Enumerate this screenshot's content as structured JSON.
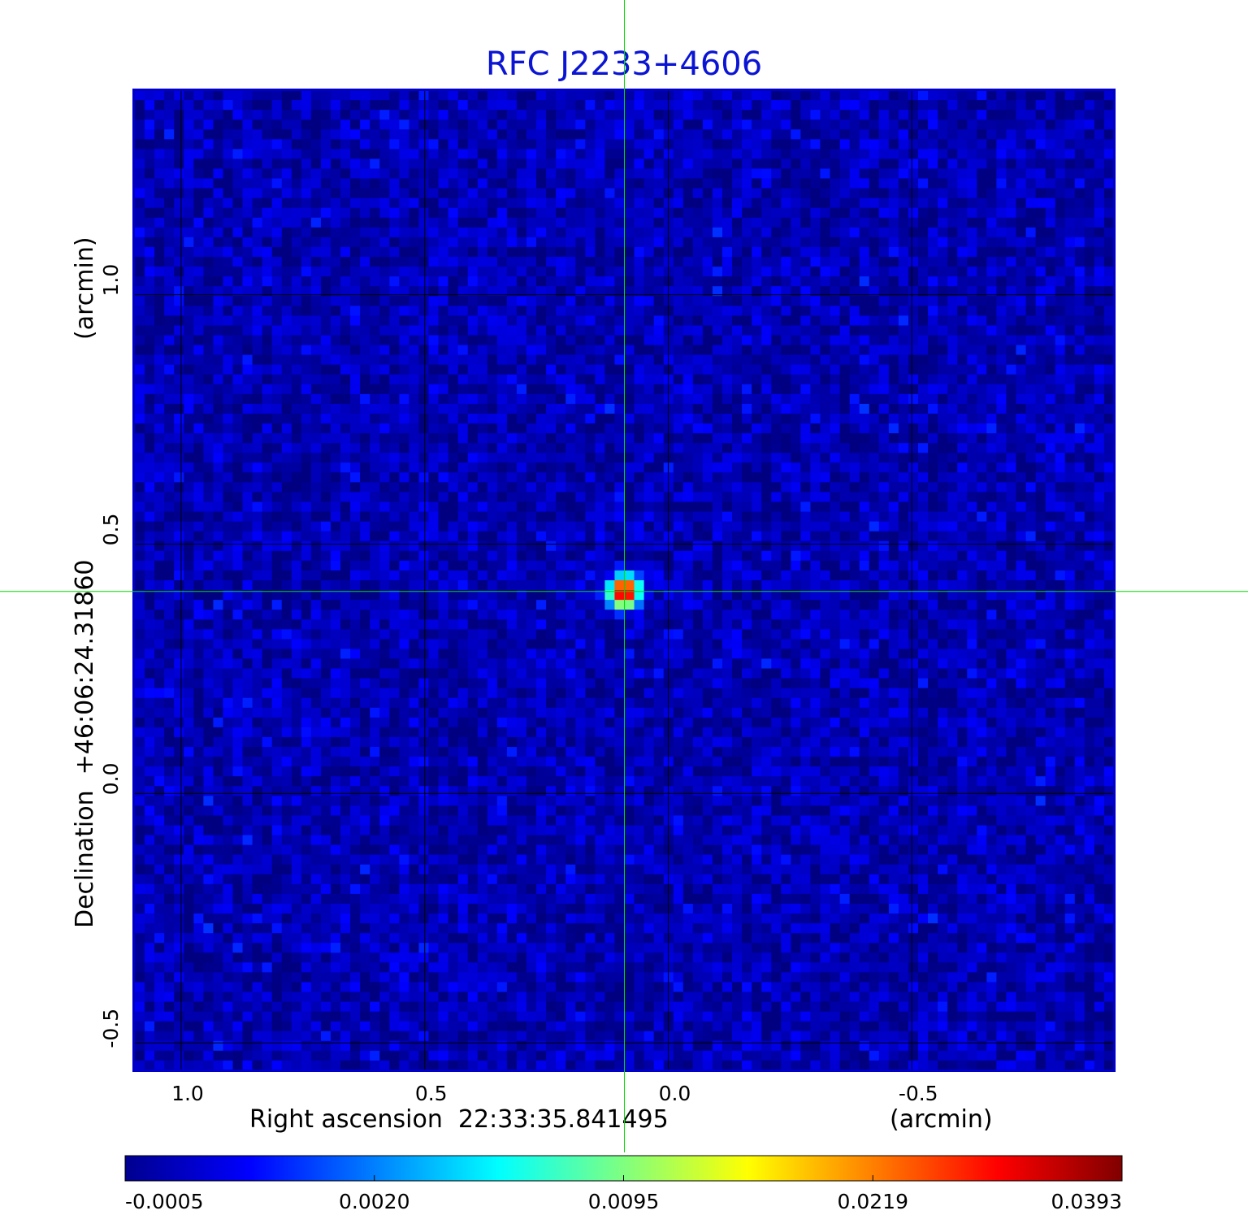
{
  "chart_data": {
    "type": "heatmap",
    "title": "RFC J2233+4606",
    "xlabel": "Right ascension  22:33:35.841495",
    "xunit": "(arcmin)",
    "ylabel": "Declination  +46:06:24.31860",
    "yunit": "(arcmin)",
    "x_ticks": [
      1.0,
      0.5,
      0.0,
      -0.5
    ],
    "x_tick_labels": [
      "1.0",
      "0.5",
      "0.0",
      "-0.5"
    ],
    "y_ticks": [
      1.0,
      0.5,
      0.0,
      -0.5
    ],
    "y_tick_labels": [
      "1.0",
      "0.5",
      "0.0",
      "-0.5"
    ],
    "xlim": [
      1.095,
      -0.915
    ],
    "ylim": [
      -0.555,
      1.41
    ],
    "grid": true,
    "source_peak": {
      "x": 0.09,
      "y": 0.405,
      "value": 0.0393
    },
    "background_level": 0.0,
    "noise_level": 0.0012,
    "crosshair": {
      "x": 0.09,
      "y": 0.405,
      "color": "#00dd00"
    },
    "colorbar": {
      "colormap": "jet",
      "tick_labels": [
        "-0.0005",
        "0.0020",
        "0.0095",
        "0.0219",
        "0.0393"
      ],
      "tick_values": [
        -0.0005,
        0.002,
        0.0095,
        0.0219,
        0.0393
      ]
    },
    "colors": {
      "frame": "#0000c8",
      "title": "#0a14d2",
      "grid": "#000000"
    }
  }
}
